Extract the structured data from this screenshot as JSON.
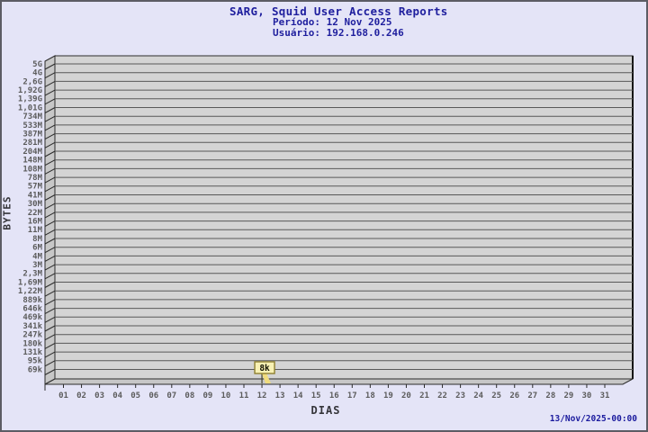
{
  "header": {
    "title": "SARG, Squid User Access Reports",
    "period_line": "Período: 12 Nov 2025",
    "user_line": "Usuário: 192.168.0.246"
  },
  "footer": {
    "generated_timestamp": "13/Nov/2025-00:00"
  },
  "chart_data": {
    "type": "bar",
    "title": "SARG, Squid User Access Reports",
    "subtitle_period": "Período: 12 Nov 2025",
    "subtitle_user": "Usuário: 192.168.0.246",
    "xlabel": "DIAS",
    "ylabel": "BYTES",
    "legend_position": "none",
    "grid": "horizontal",
    "style": "3d-bar",
    "y_scale": "log",
    "y_tick_labels": [
      "5G",
      "4G",
      "2,6G",
      "1,92G",
      "1,39G",
      "1,01G",
      "734M",
      "533M",
      "387M",
      "281M",
      "204M",
      "148M",
      "108M",
      "78M",
      "57M",
      "41M",
      "30M",
      "22M",
      "16M",
      "11M",
      "8M",
      "6M",
      "4M",
      "3M",
      "2,3M",
      "1,69M",
      "1,22M",
      "889k",
      "646k",
      "469k",
      "341k",
      "247k",
      "180k",
      "131k",
      "95k",
      "69k"
    ],
    "x_tick_labels": [
      "01",
      "02",
      "03",
      "04",
      "05",
      "06",
      "07",
      "08",
      "09",
      "10",
      "11",
      "12",
      "13",
      "14",
      "15",
      "16",
      "17",
      "18",
      "19",
      "20",
      "21",
      "22",
      "23",
      "24",
      "25",
      "26",
      "27",
      "28",
      "29",
      "30",
      "31"
    ],
    "points": [
      {
        "day": "12",
        "value_label": "8k"
      }
    ],
    "colors": {
      "background": "#e4e4f7",
      "title_navy": "#1f1f9e",
      "plot_bg": "#d4d4d4",
      "wall": "#c7c7c7",
      "grid_line": "#585858",
      "frame": "#2b2b2b",
      "right_edge": "#151515",
      "tick_label": "#5c5c5c",
      "axis_title": "#35353a",
      "marker_fill": "#f8f1b4",
      "marker_border": "#8e7f2f",
      "marker_flag": "#f0dc7e",
      "marker_line": "#44442a"
    }
  }
}
